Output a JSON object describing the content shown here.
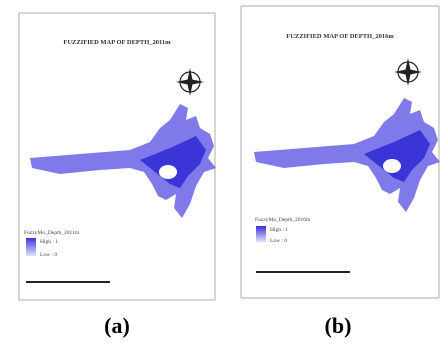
{
  "panels": [
    {
      "title": "FUZZIFIED MAP OF DEPTH_2011m",
      "legend_title": "FuzzyMo_Depth_2011m",
      "legend_high": "High : 1",
      "legend_low": "Low : 0",
      "caption": "(a)"
    },
    {
      "title": "FUZZIFIED MAP OF DEPTH_2016m",
      "legend_title": "FuzzyMo_Depth_2016m",
      "legend_high": "High : 1",
      "legend_low": "Low : 0",
      "caption": "(b)"
    }
  ]
}
